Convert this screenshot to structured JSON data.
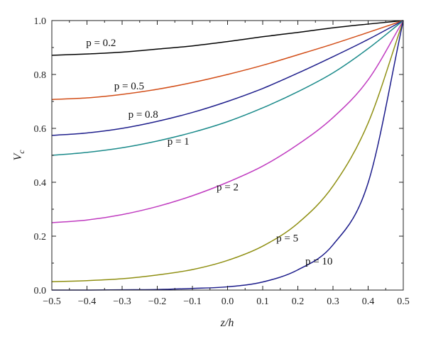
{
  "chart_data": {
    "type": "line",
    "title": "",
    "xlabel": "z/h",
    "ylabel_main": "V",
    "ylabel_sub": "c",
    "xlim": [
      -0.5,
      0.5
    ],
    "ylim": [
      0,
      1.0
    ],
    "grid": false,
    "legend": "none (inline labels)",
    "x_ticks": [
      -0.5,
      -0.4,
      -0.3,
      -0.2,
      -0.1,
      0.0,
      0.1,
      0.2,
      0.3,
      0.4,
      0.5
    ],
    "x_tick_labels": [
      "−0.5",
      "−0.4",
      "−0.3",
      "−0.2",
      "−0.1",
      "0.0",
      "0.1",
      "0.2",
      "0.3",
      "0.4",
      "0.5"
    ],
    "y_ticks": [
      0.0,
      0.2,
      0.4,
      0.6,
      0.8,
      1.0
    ],
    "y_tick_labels": [
      "0.0",
      "0.2",
      "0.4",
      "0.6",
      "0.8",
      "1.0"
    ],
    "x": [
      -0.5,
      -0.4,
      -0.3,
      -0.2,
      -0.1,
      0.0,
      0.1,
      0.2,
      0.3,
      0.4,
      0.5
    ],
    "series": [
      {
        "name": "p = 0.2",
        "color": "#000000",
        "values": [
          0.871,
          0.876,
          0.883,
          0.894,
          0.906,
          0.922,
          0.94,
          0.956,
          0.973,
          0.987,
          1.0
        ],
        "label_x": -0.36,
        "label_y": 0.905
      },
      {
        "name": "p = 0.5",
        "color": "#d24d17",
        "values": [
          0.707,
          0.713,
          0.726,
          0.745,
          0.77,
          0.8,
          0.834,
          0.873,
          0.913,
          0.956,
          1.0
        ],
        "label_x": -0.28,
        "label_y": 0.745
      },
      {
        "name": "p = 0.8",
        "color": "#1f1f8c",
        "values": [
          0.574,
          0.583,
          0.6,
          0.626,
          0.659,
          0.7,
          0.748,
          0.805,
          0.866,
          0.93,
          1.0
        ],
        "label_x": -0.24,
        "label_y": 0.64
      },
      {
        "name": "p = 1",
        "color": "#1a8a8a",
        "values": [
          0.5,
          0.511,
          0.528,
          0.553,
          0.585,
          0.625,
          0.676,
          0.736,
          0.806,
          0.896,
          1.0
        ],
        "label_x": -0.14,
        "label_y": 0.54
      },
      {
        "name": "p = 2",
        "color": "#c03cc0",
        "values": [
          0.25,
          0.26,
          0.28,
          0.31,
          0.35,
          0.4,
          0.46,
          0.54,
          0.64,
          0.78,
          1.0
        ],
        "label_x": 0.0,
        "label_y": 0.37
      },
      {
        "name": "p = 5",
        "color": "#8f8f12",
        "values": [
          0.031,
          0.035,
          0.042,
          0.056,
          0.076,
          0.11,
          0.163,
          0.248,
          0.386,
          0.62,
          1.0
        ],
        "label_x": 0.17,
        "label_y": 0.18
      },
      {
        "name": "p = 10",
        "color": "#1a1a8a",
        "values": [
          0.0,
          0.0,
          0.001,
          0.002,
          0.006,
          0.012,
          0.03,
          0.075,
          0.168,
          0.398,
          1.0
        ],
        "label_x": 0.26,
        "label_y": 0.095
      }
    ]
  }
}
